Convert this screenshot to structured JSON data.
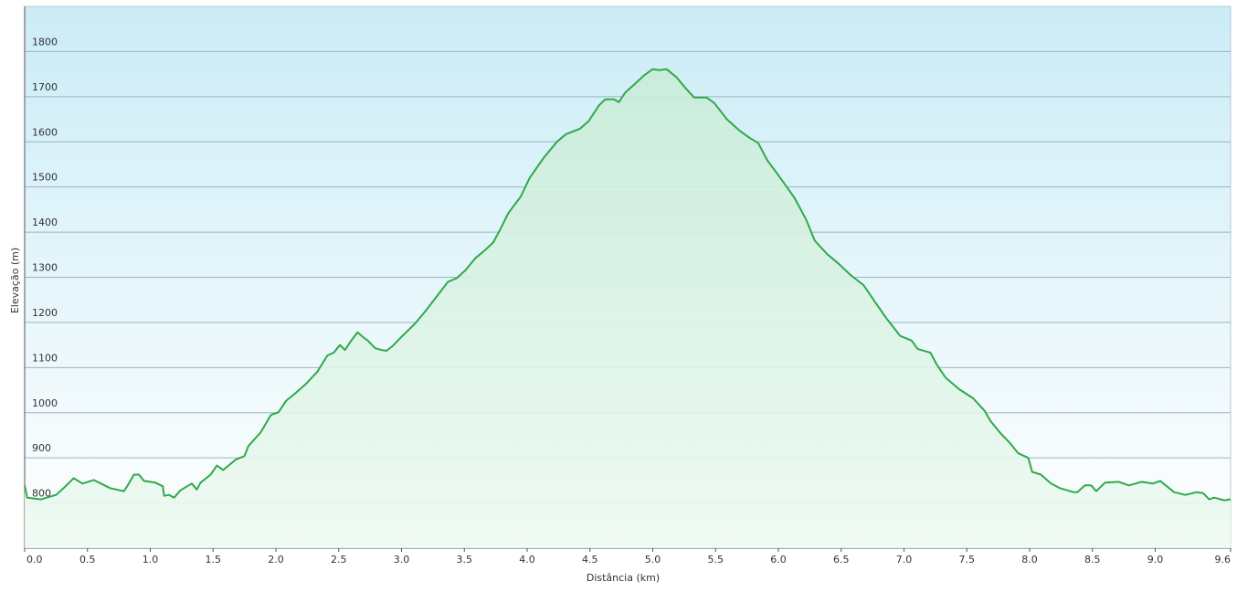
{
  "chart_data": {
    "type": "area",
    "x_label": "Distância  (km)",
    "y_label": "Elevação (m)",
    "color": "#2eaa4a",
    "grid": true,
    "xlim": [
      0,
      9.6
    ],
    "ylim": [
      700,
      1900
    ],
    "yticks": [
      800,
      900,
      1000,
      1100,
      1200,
      1300,
      1400,
      1500,
      1600,
      1700,
      1800
    ],
    "xticks": [
      {
        "value": 0,
        "label": "0.0"
      },
      0.5,
      {
        "value": 1,
        "label": "1.0"
      },
      1.5,
      {
        "value": 2,
        "label": "2.0"
      },
      2.5,
      {
        "value": 3,
        "label": "3.0"
      },
      3.5,
      {
        "value": 4,
        "label": "4.0"
      },
      4.5,
      {
        "value": 5,
        "label": "5.0"
      },
      5.5,
      {
        "value": 6,
        "label": "6.0"
      },
      6.5,
      {
        "value": 7,
        "label": "7.0"
      },
      7.5,
      {
        "value": 8,
        "label": "8.0"
      },
      8.5,
      {
        "value": 9,
        "label": "9.0"
      },
      9.6
    ],
    "x": [
      0,
      0.02,
      0.13,
      0.25,
      0.31,
      0.39,
      0.46,
      0.55,
      0.68,
      0.79,
      0.82,
      0.87,
      0.91,
      0.95,
      1.04,
      1.1,
      1.11,
      1.15,
      1.19,
      1.24,
      1.33,
      1.37,
      1.4,
      1.48,
      1.53,
      1.58,
      1.68,
      1.75,
      1.78,
      1.88,
      1.96,
      2.02,
      2.08,
      2.15,
      2.24,
      2.33,
      2.41,
      2.46,
      2.51,
      2.55,
      2.6,
      2.65,
      2.7,
      2.73,
      2.79,
      2.84,
      2.88,
      2.93,
      3.0,
      3.11,
      3.19,
      3.29,
      3.37,
      3.44,
      3.51,
      3.59,
      3.66,
      3.73,
      3.79,
      3.85,
      3.95,
      4.02,
      4.13,
      4.24,
      4.31,
      4.42,
      4.49,
      4.57,
      4.62,
      4.69,
      4.73,
      4.78,
      4.86,
      4.93,
      5.0,
      5.05,
      5.11,
      5.19,
      5.26,
      5.33,
      5.43,
      5.49,
      5.59,
      5.69,
      5.77,
      5.84,
      5.91,
      6.0,
      6.07,
      6.13,
      6.22,
      6.29,
      6.39,
      6.48,
      6.57,
      6.68,
      6.77,
      6.86,
      6.97,
      7.06,
      7.11,
      7.21,
      7.26,
      7.33,
      7.44,
      7.55,
      7.64,
      7.69,
      7.77,
      7.84,
      7.91,
      7.99,
      8.02,
      8.09,
      8.17,
      8.24,
      8.35,
      8.38,
      8.44,
      8.49,
      8.53,
      8.6,
      8.71,
      8.79,
      8.89,
      8.98,
      9.04,
      9.15,
      9.24,
      9.33,
      9.38,
      9.43,
      9.47,
      9.55,
      9.6
    ],
    "values": [
      839,
      812,
      808,
      818,
      833,
      855,
      843,
      851,
      833,
      826,
      839,
      863,
      863,
      849,
      845,
      837,
      816,
      818,
      812,
      828,
      843,
      830,
      845,
      863,
      883,
      873,
      896,
      904,
      926,
      957,
      995,
      1001,
      1026,
      1042,
      1064,
      1091,
      1127,
      1133,
      1150,
      1139,
      1160,
      1178,
      1166,
      1160,
      1143,
      1139,
      1137,
      1148,
      1168,
      1198,
      1225,
      1261,
      1290,
      1298,
      1316,
      1343,
      1359,
      1377,
      1408,
      1442,
      1479,
      1520,
      1564,
      1601,
      1617,
      1629,
      1646,
      1680,
      1694,
      1694,
      1688,
      1709,
      1729,
      1747,
      1761,
      1759,
      1761,
      1743,
      1719,
      1698,
      1698,
      1686,
      1650,
      1625,
      1609,
      1597,
      1560,
      1526,
      1499,
      1475,
      1428,
      1381,
      1351,
      1330,
      1306,
      1282,
      1245,
      1209,
      1170,
      1160,
      1141,
      1133,
      1107,
      1078,
      1052,
      1032,
      1005,
      981,
      954,
      934,
      910,
      900,
      869,
      863,
      843,
      833,
      824,
      824,
      839,
      839,
      826,
      845,
      847,
      839,
      847,
      843,
      849,
      824,
      818,
      824,
      822,
      808,
      812,
      806,
      808
    ]
  }
}
